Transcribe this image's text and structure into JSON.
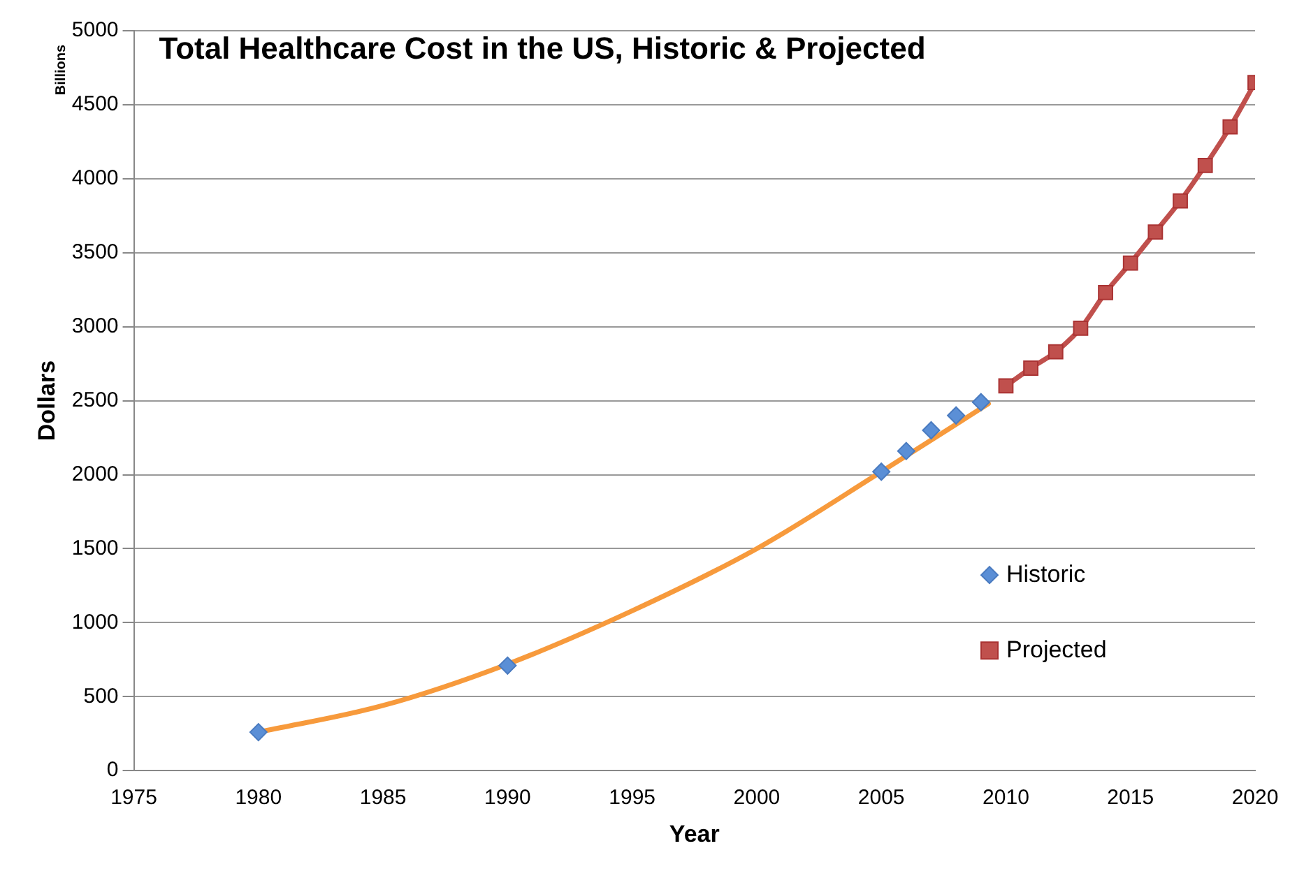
{
  "chart_data": {
    "type": "scatter",
    "title": "Total Healthcare Cost in the US, Historic & Projected",
    "xlabel": "Year",
    "ylabel": "Dollars",
    "annotations": [
      "Billions"
    ],
    "xlim": [
      1975,
      2020
    ],
    "xticks": [
      1975,
      1980,
      1985,
      1990,
      1995,
      2000,
      2005,
      2010,
      2015,
      2020
    ],
    "ylim": [
      0,
      5000
    ],
    "yticks": [
      0,
      500,
      1000,
      1500,
      2000,
      2500,
      3000,
      3500,
      4000,
      4500,
      5000
    ],
    "grid": "y",
    "legend": "bottom right",
    "series": [
      {
        "name": "Historic",
        "type": "scatter",
        "marker": "diamond",
        "color": "#5b8fd6",
        "x": [
          1980,
          1990,
          2005,
          2006,
          2007,
          2008,
          2009
        ],
        "values": [
          260,
          710,
          2020,
          2160,
          2300,
          2400,
          2490
        ]
      },
      {
        "type": "line",
        "marker": "none",
        "color": "#f79a3c",
        "x": [
          1980,
          1985,
          1990,
          1995,
          2000,
          2005,
          2009.3
        ],
        "values": [
          260,
          440,
          720,
          1080,
          1500,
          2020,
          2480
        ]
      },
      {
        "name": "Projected",
        "type": "line",
        "marker": "square",
        "color": "#c0504d",
        "x": [
          2010,
          2011,
          2012,
          2013,
          2014,
          2015,
          2016,
          2017,
          2018,
          2019,
          2020
        ],
        "values": [
          2600,
          2720,
          2830,
          2990,
          3230,
          3430,
          3640,
          3850,
          4090,
          4350,
          4650
        ]
      }
    ]
  }
}
